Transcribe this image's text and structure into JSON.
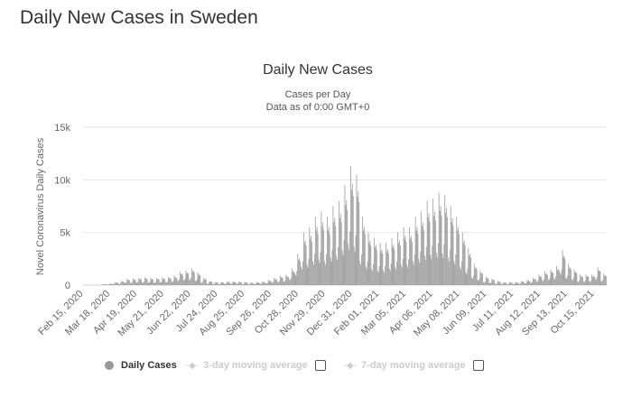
{
  "page": {
    "title": "Daily New Cases in Sweden"
  },
  "chart_data": {
    "type": "bar",
    "title": "Daily New Cases",
    "subtitle": [
      "Cases per Day",
      "Data as of 0:00 GMT+0"
    ],
    "ylabel": "Novel Coronavirus Daily Cases",
    "xlabel": "",
    "ylim": [
      0,
      15000
    ],
    "yticks": [
      {
        "value": 0,
        "label": "0"
      },
      {
        "value": 5000,
        "label": "5k"
      },
      {
        "value": 10000,
        "label": "10k"
      },
      {
        "value": 15000,
        "label": "15k"
      }
    ],
    "grid": true,
    "start_date": "2020-02-15",
    "xtick_labels": [
      "Feb 15, 2020",
      "Mar 18, 2020",
      "Apr 19, 2020",
      "May 21, 2020",
      "Jun 22, 2020",
      "Jul 24, 2020",
      "Aug 25, 2020",
      "Sep 26, 2020",
      "Oct 28, 2020",
      "Nov 29, 2020",
      "Dec 31, 2020",
      "Feb 01, 2021",
      "Mar 05, 2021",
      "Apr 06, 2021",
      "May 08, 2021",
      "Jun 09, 2021",
      "Jul 11, 2021",
      "Aug 12, 2021",
      "Sep 13, 2021",
      "Oct 15, 2021"
    ],
    "bar_color": "#999999",
    "series": [
      {
        "name": "Daily Cases",
        "values": [
          0,
          0,
          0,
          0,
          0,
          0,
          0,
          0,
          0,
          0,
          0,
          0,
          0,
          0,
          5,
          5,
          10,
          20,
          15,
          15,
          15,
          35,
          30,
          45,
          100,
          80,
          85,
          75,
          55,
          45,
          70,
          150,
          120,
          130,
          110,
          105,
          90,
          135,
          300,
          240,
          255,
          225,
          140,
          120,
          180,
          400,
          320,
          340,
          300,
          210,
          180,
          270,
          600,
          480,
          510,
          450,
          230,
          195,
          290,
          650,
          520,
          550,
          490,
          245,
          210,
          315,
          700,
          560,
          595,
          525,
          265,
          225,
          340,
          750,
          600,
          640,
          565,
          245,
          210,
          315,
          700,
          560,
          595,
          525,
          245,
          210,
          315,
          700,
          560,
          595,
          525,
          265,
          225,
          340,
          750,
          600,
          640,
          565,
          280,
          240,
          360,
          800,
          640,
          680,
          600,
          315,
          270,
          405,
          900,
          720,
          765,
          675,
          455,
          390,
          585,
          1300,
          1040,
          1105,
          975,
          490,
          420,
          630,
          1400,
          1120,
          1190,
          1050,
          560,
          480,
          720,
          1600,
          1280,
          1360,
          1200,
          420,
          360,
          540,
          1200,
          960,
          1020,
          900,
          245,
          210,
          315,
          700,
          560,
          595,
          525,
          140,
          120,
          180,
          400,
          320,
          340,
          300,
          105,
          90,
          135,
          300,
          240,
          255,
          225,
          105,
          90,
          135,
          300,
          240,
          255,
          225,
          125,
          105,
          160,
          350,
          280,
          300,
          265,
          125,
          105,
          160,
          350,
          280,
          300,
          265,
          125,
          105,
          160,
          350,
          280,
          300,
          265,
          105,
          90,
          135,
          300,
          240,
          255,
          225,
          90,
          75,
          115,
          250,
          200,
          215,
          190,
          105,
          90,
          135,
          300,
          240,
          255,
          225,
          125,
          105,
          160,
          350,
          280,
          300,
          265,
          175,
          150,
          225,
          500,
          400,
          425,
          375,
          245,
          210,
          315,
          700,
          560,
          595,
          525,
          315,
          270,
          405,
          900,
          720,
          765,
          675,
          350,
          300,
          450,
          1000,
          800,
          850,
          750,
          560,
          480,
          720,
          1600,
          1280,
          1360,
          1200,
          1050,
          900,
          1350,
          3000,
          2400,
          2550,
          2250,
          1750,
          1500,
          2250,
          5000,
          4000,
          4250,
          3750,
          1925,
          1650,
          2475,
          5500,
          4400,
          4675,
          4125,
          2275,
          1950,
          2925,
          6500,
          5200,
          5525,
          4875,
          2450,
          2100,
          3150,
          7000,
          5600,
          5950,
          5250,
          2275,
          1950,
          2925,
          6500,
          5200,
          5525,
          4875,
          2625,
          2250,
          3375,
          7500,
          6000,
          6375,
          5625,
          2800,
          2400,
          3600,
          8000,
          6400,
          6800,
          6000,
          3325,
          2850,
          4275,
          9500,
          7600,
          8075,
          7125,
          3955,
          3390,
          5085,
          11300,
          9040,
          9605,
          8475,
          3675,
          3150,
          4725,
          10500,
          8400,
          8925,
          7875,
          2275,
          1950,
          2925,
          6500,
          5200,
          5525,
          4875,
          1750,
          1500,
          2250,
          5000,
          4000,
          4250,
          3750,
          1575,
          1350,
          2025,
          4500,
          3600,
          3825,
          3375,
          1400,
          1200,
          1800,
          4000,
          3200,
          3400,
          3000,
          1400,
          1200,
          1800,
          4000,
          3200,
          3400,
          3000,
          1575,
          1350,
          2025,
          4500,
          3600,
          3825,
          3375,
          1750,
          1500,
          2250,
          5000,
          4000,
          4250,
          3750,
          1925,
          1650,
          2475,
          5500,
          4400,
          4675,
          4125,
          1925,
          1650,
          2475,
          5500,
          4400,
          4675,
          4125,
          2275,
          1950,
          2925,
          6500,
          5200,
          5525,
          4875,
          2450,
          2100,
          3150,
          7000,
          5600,
          5950,
          5250,
          2800,
          2400,
          3600,
          8000,
          6400,
          6800,
          6000,
          2870,
          2460,
          3690,
          8200,
          6560,
          6970,
          6150,
          3080,
          2640,
          3960,
          8800,
          7040,
          7480,
          6600,
          3010,
          2580,
          3870,
          8600,
          6880,
          7310,
          6450,
          2625,
          2250,
          3375,
          7500,
          6000,
          6375,
          5625,
          2275,
          1950,
          2925,
          6500,
          5200,
          5525,
          4875,
          1750,
          1500,
          2250,
          5000,
          4000,
          4250,
          3750,
          1225,
          1050,
          1575,
          3500,
          2800,
          2975,
          2625,
          700,
          600,
          900,
          2000,
          1600,
          1700,
          1500,
          490,
          420,
          630,
          1400,
          1120,
          1190,
          1050,
          280,
          240,
          360,
          800,
          640,
          680,
          600,
          210,
          180,
          270,
          600,
          480,
          510,
          450,
          140,
          120,
          180,
          400,
          320,
          340,
          300,
          105,
          90,
          135,
          300,
          240,
          255,
          225,
          105,
          90,
          135,
          300,
          240,
          255,
          225,
          105,
          90,
          135,
          300,
          240,
          255,
          225,
          140,
          120,
          180,
          400,
          320,
          340,
          300,
          175,
          150,
          225,
          500,
          400,
          425,
          375,
          245,
          210,
          315,
          700,
          560,
          595,
          525,
          350,
          300,
          450,
          1000,
          800,
          850,
          750,
          455,
          390,
          585,
          1300,
          1040,
          1105,
          975,
          525,
          450,
          675,
          1500,
          1200,
          1275,
          1125,
          630,
          540,
          810,
          1800,
          1440,
          1530,
          1350,
          1155,
          990,
          1485,
          3300,
          2640,
          2805,
          2475,
          700,
          600,
          900,
          2000,
          1600,
          1700,
          1500,
          525,
          450,
          675,
          1500,
          1200,
          1275,
          1125,
          350,
          300,
          450,
          1000,
          800,
          850,
          750,
          350,
          300,
          450,
          1000,
          800,
          850,
          750,
          350,
          300,
          450,
          1000,
          800,
          850,
          750,
          595,
          510,
          765,
          1700,
          1360,
          1445,
          1275,
          385,
          330,
          495,
          1100,
          880,
          935,
          825
        ]
      }
    ]
  },
  "legend": {
    "daily": "Daily Cases",
    "avg3": "3-day moving average",
    "avg7": "7-day moving average",
    "avg3_checked": false,
    "avg7_checked": false
  }
}
